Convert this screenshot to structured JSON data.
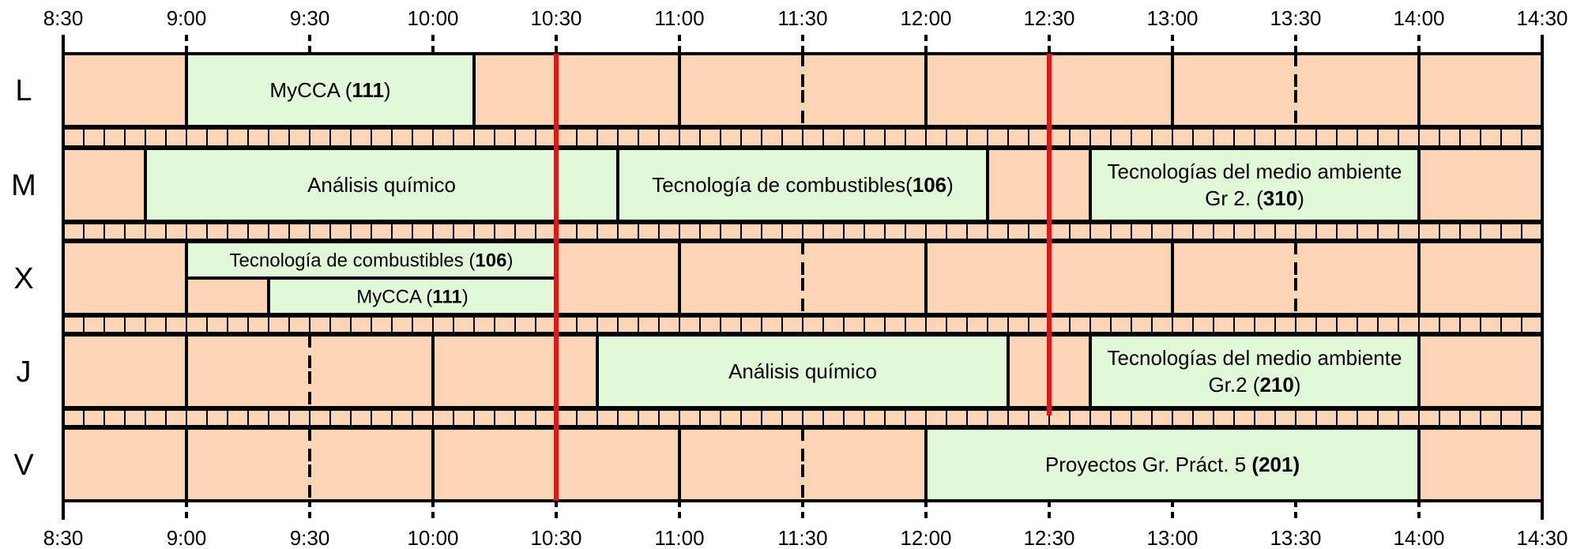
{
  "times": [
    "8:30",
    "9:00",
    "9:30",
    "10:00",
    "10:30",
    "11:00",
    "11:30",
    "12:00",
    "12:30",
    "13:00",
    "13:30",
    "14:00",
    "14:30"
  ],
  "days": [
    "L",
    "M",
    "X",
    "J",
    "V"
  ],
  "colors": {
    "bg_slot": "#fbd5b5",
    "class_fill": "#e2f9d9",
    "grid": "#000000",
    "marker": "#ee1111"
  },
  "markers_times": [
    "10:30",
    "12:30"
  ],
  "events": [
    {
      "day": "L",
      "start": "9:00",
      "end": "10:10",
      "lines": [
        [
          {
            "t": "MyCCA ("
          },
          {
            "t": "111",
            "b": true
          },
          {
            "t": ")"
          }
        ]
      ]
    },
    {
      "day": "M",
      "start": "8:50",
      "end": "10:45",
      "lines": [
        [
          {
            "t": "Análisis químico"
          }
        ]
      ]
    },
    {
      "day": "M",
      "start": "10:45",
      "end": "12:15",
      "lines": [
        [
          {
            "t": "Tecnología de combustibles("
          },
          {
            "t": "106",
            "b": true
          },
          {
            "t": ")"
          }
        ]
      ]
    },
    {
      "day": "M",
      "start": "12:40",
      "end": "14:00",
      "lines": [
        [
          {
            "t": "Tecnologías del medio ambiente"
          }
        ],
        [
          {
            "t": "Gr 2. ("
          },
          {
            "t": "310",
            "b": true
          },
          {
            "t": ")"
          }
        ]
      ]
    },
    {
      "day": "X",
      "start": "9:00",
      "end": "10:30",
      "half": "top",
      "lines": [
        [
          {
            "t": "Tecnología de combustibles ("
          },
          {
            "t": "106",
            "b": true
          },
          {
            "t": ")"
          }
        ]
      ]
    },
    {
      "day": "X",
      "start": "9:20",
      "end": "10:30",
      "half": "bottom",
      "lines": [
        [
          {
            "t": "MyCCA ("
          },
          {
            "t": "111",
            "b": true
          },
          {
            "t": ")"
          }
        ]
      ]
    },
    {
      "day": "J",
      "start": "10:40",
      "end": "12:20",
      "lines": [
        [
          {
            "t": "Análisis químico"
          }
        ]
      ]
    },
    {
      "day": "J",
      "start": "12:40",
      "end": "14:00",
      "lines": [
        [
          {
            "t": "Tecnologías del medio ambiente"
          }
        ],
        [
          {
            "t": "Gr.2 ("
          },
          {
            "t": "210",
            "b": true
          },
          {
            "t": ")"
          }
        ]
      ]
    },
    {
      "day": "V",
      "start": "12:00",
      "end": "14:00",
      "lines": [
        [
          {
            "t": "Proyectos Gr. Práct. 5 "
          },
          {
            "t": "(201)",
            "b": true
          }
        ]
      ]
    }
  ]
}
